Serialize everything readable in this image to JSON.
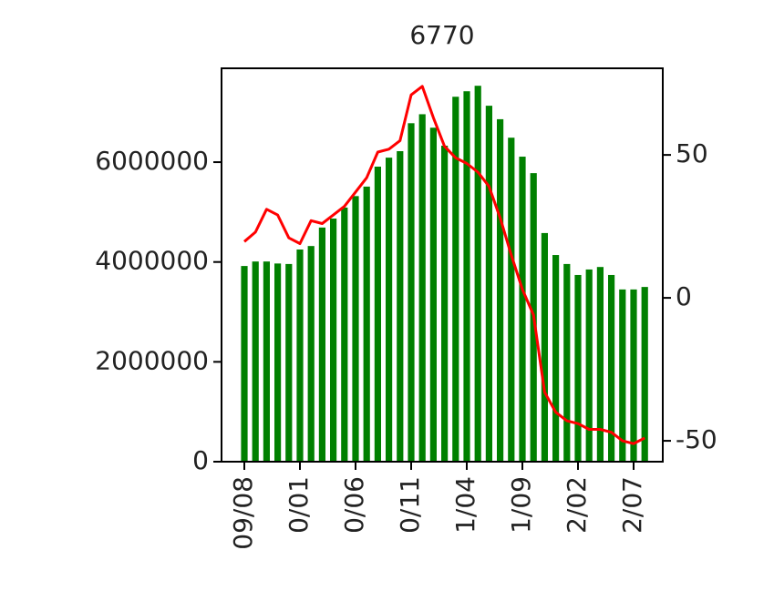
{
  "chart_data": {
    "type": "bar",
    "title": "6770",
    "categories": [
      "09/08",
      null,
      null,
      null,
      null,
      "0/01",
      null,
      null,
      null,
      null,
      "0/06",
      null,
      null,
      null,
      null,
      "0/11",
      null,
      null,
      null,
      null,
      "1/04",
      null,
      null,
      null,
      null,
      "1/09",
      null,
      null,
      null,
      null,
      "2/02",
      null,
      null,
      null,
      null,
      "2/07",
      null
    ],
    "series": [
      {
        "type": "bar",
        "color": "#008000",
        "values": [
          3920000,
          4010000,
          4010000,
          3970000,
          3960000,
          4250000,
          4320000,
          4690000,
          4870000,
          5090000,
          5320000,
          5510000,
          5910000,
          6090000,
          6220000,
          6780000,
          6960000,
          6690000,
          6330000,
          7310000,
          7420000,
          7530000,
          7130000,
          6860000,
          6490000,
          6110000,
          5780000,
          4580000,
          4140000,
          3960000,
          3740000,
          3850000,
          3900000,
          3740000,
          3450000,
          3450000,
          3500000
        ]
      },
      {
        "type": "line",
        "axis": "y2",
        "color": "#ff0000",
        "values": [
          19.7,
          23,
          31,
          29,
          21,
          19,
          27,
          26,
          29,
          32,
          37,
          42,
          51,
          52,
          55,
          71,
          74,
          63,
          53,
          49,
          47,
          44,
          39,
          28,
          15,
          3,
          -6,
          -33,
          -40,
          -43,
          -44,
          -46,
          -46,
          -47,
          -50,
          -51,
          -49
        ]
      }
    ],
    "ylim": [
      0,
      7880000
    ],
    "yticks": [
      0,
      2000000,
      4000000,
      6000000
    ],
    "y2lim": [
      -57.3,
      80.3
    ],
    "y2ticks": [
      -50,
      0,
      50
    ]
  }
}
